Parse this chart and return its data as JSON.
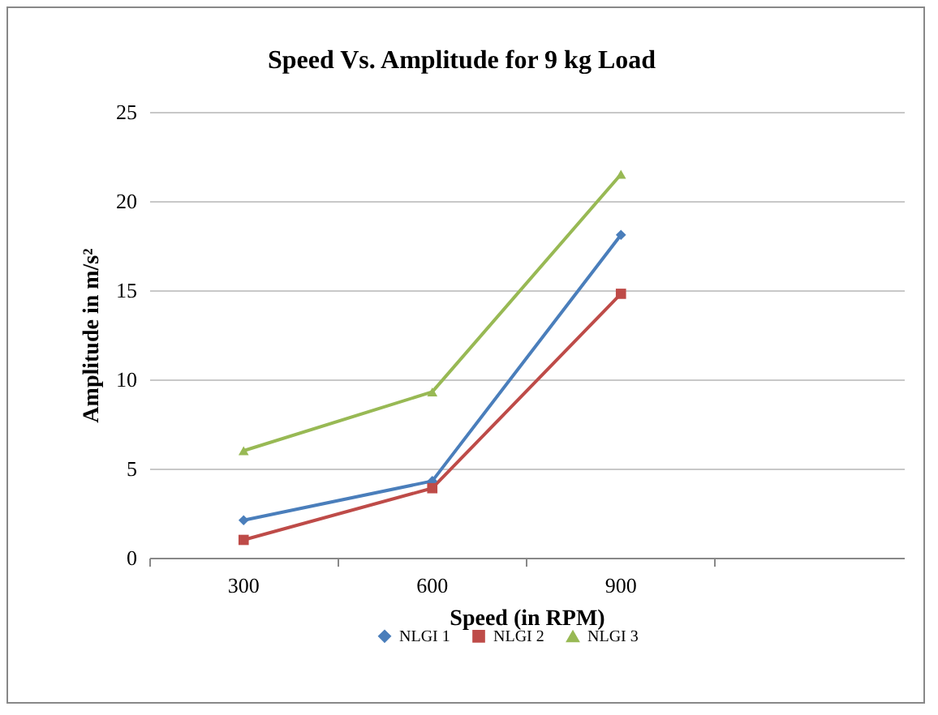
{
  "chart_data": {
    "type": "line",
    "title": "Speed Vs. Amplitude for 9 kg Load",
    "xlabel": "Speed (in RPM)",
    "ylabel": "Amplitude in m/s²",
    "categories": [
      "300",
      "600",
      "900",
      null
    ],
    "series": [
      {
        "name": "NLGI 1",
        "color": "#4a7ebb",
        "marker": "diamond",
        "values": [
          2.1,
          4.3,
          18.1,
          null
        ]
      },
      {
        "name": "NLGI 2",
        "color": "#be4b48",
        "marker": "square",
        "values": [
          1.0,
          3.9,
          14.8,
          null
        ]
      },
      {
        "name": "NLGI 3",
        "color": "#98b954",
        "marker": "triangle",
        "values": [
          6.0,
          9.3,
          21.5,
          null
        ]
      }
    ],
    "ylim": [
      0,
      25
    ],
    "yticks": [
      0,
      5,
      10,
      15,
      20,
      25
    ],
    "grid": "y",
    "legend": "bottom"
  }
}
